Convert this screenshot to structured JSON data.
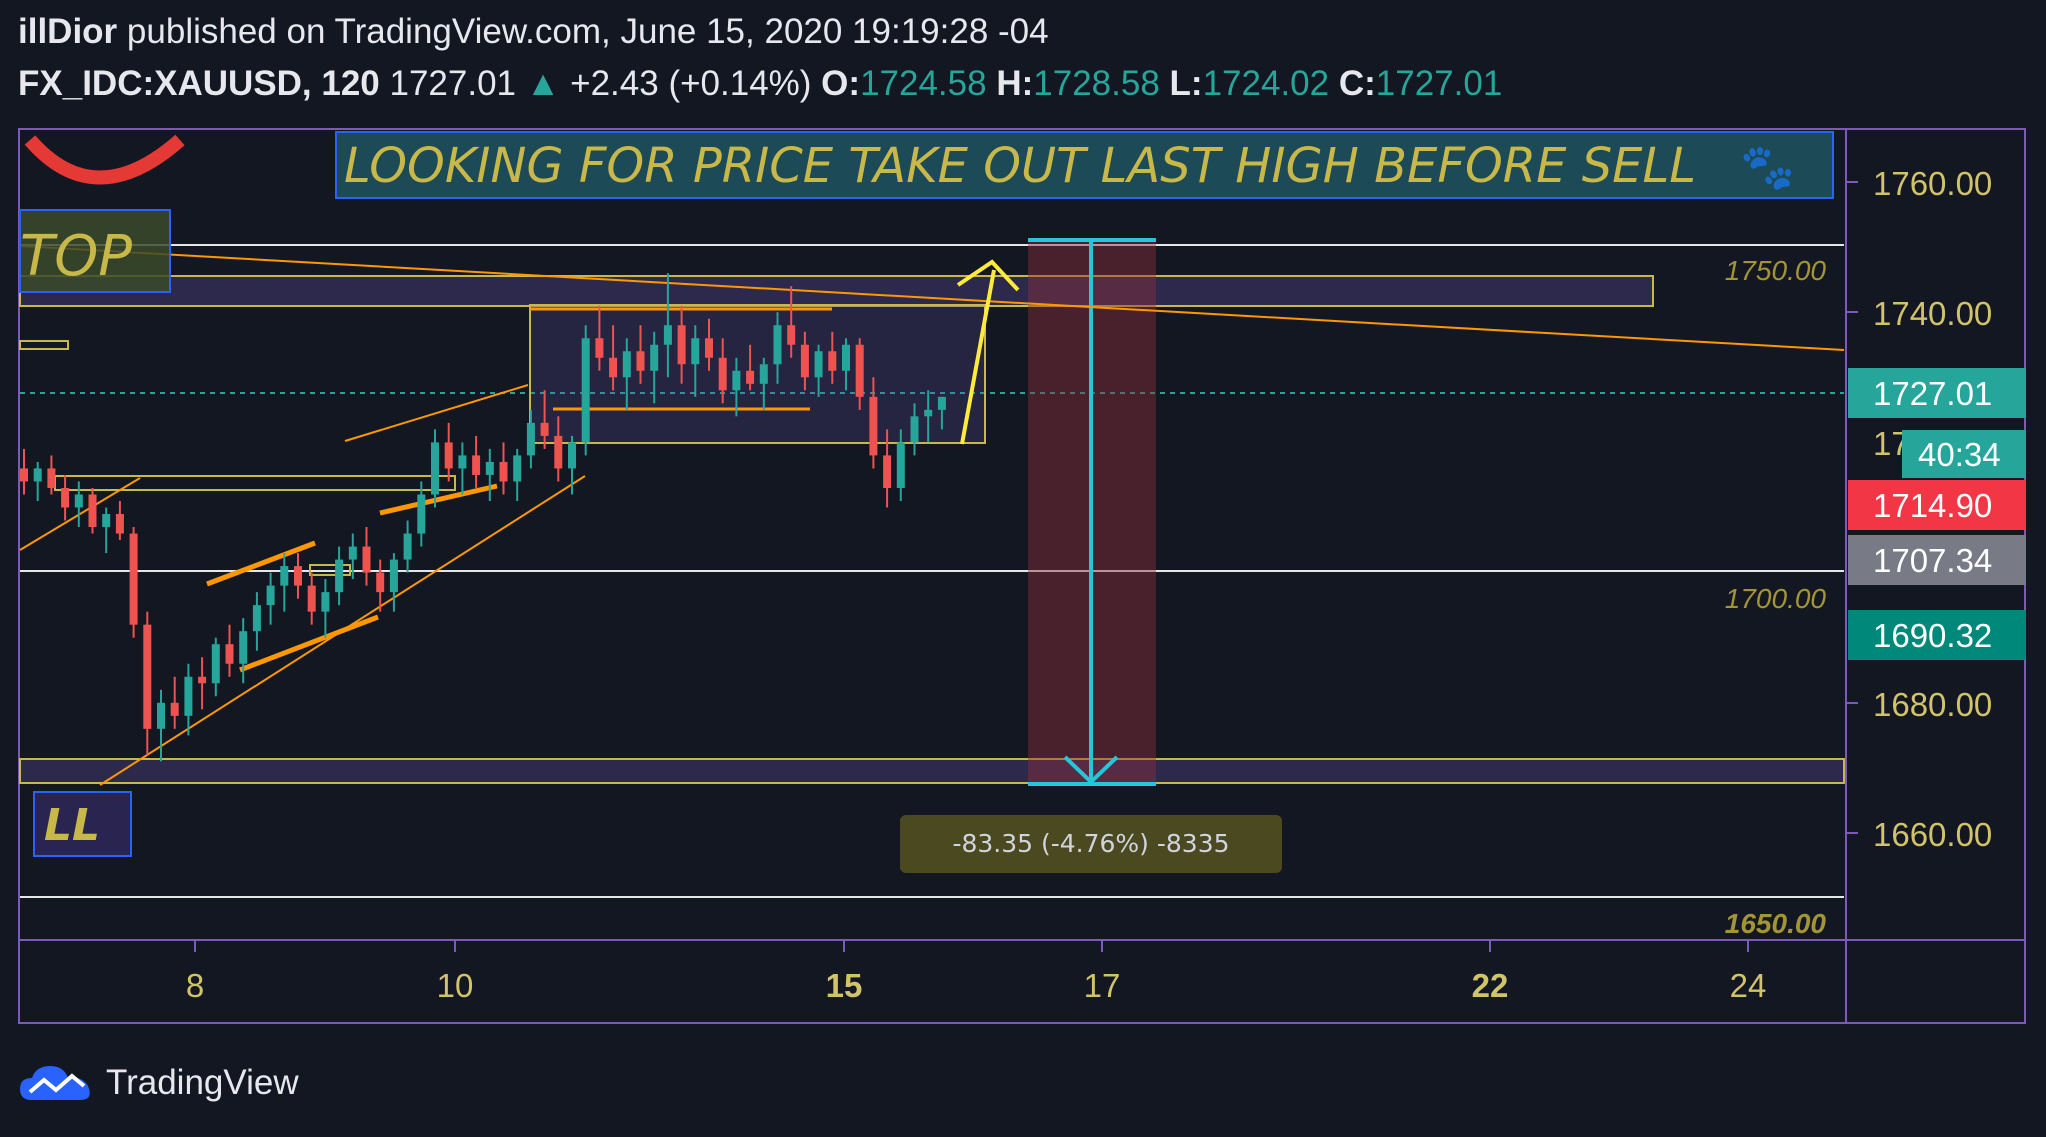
{
  "header": {
    "author": "illDior",
    "published_text": "published on TradingView.com, June 15, 2020 19:19:28 -04",
    "symbol": "FX_IDC:XAUUSD, 120",
    "price": "1727.01",
    "change": "+2.43 (+0.14%)",
    "open_label": "O:",
    "open": "1724.58",
    "high_label": "H:",
    "high": "1728.58",
    "low_label": "L:",
    "low": "1724.02",
    "close_label": "C:",
    "close": "1727.01"
  },
  "brand": {
    "name": "TradingView",
    "icon": "tradingview-cloud-icon"
  },
  "colors": {
    "background": "#131722",
    "up": "#26a69a",
    "down": "#ef5350",
    "accent": "#7b5bb5",
    "annotation": "#c8b84a",
    "trend": "#ff9800"
  },
  "annotations": {
    "banner": "LOOKING FOR PRICE TAKE OUT LAST HIGH BEFORE SELL",
    "banner_emoji": "🐾",
    "top_label": "TOP",
    "ll_label": "LL",
    "measure": "-83.35 (-4.76%) -8335",
    "level_1750": "1750.00",
    "level_1700": "1700.00",
    "level_1650": "1650.00"
  },
  "price_scale": {
    "ticks": [
      "1760.00",
      "1740.00",
      "1680.00",
      "1660.00"
    ],
    "partial_tick": "17",
    "current_price": "1727.01",
    "countdown": "40:34",
    "tag_red": "1714.90",
    "tag_gray": "1707.34",
    "tag_teal": "1690.32"
  },
  "chart_data": {
    "type": "candlestick",
    "symbol": "FX_IDC:XAUUSD",
    "interval": "120",
    "x_ticks": [
      {
        "label": "8",
        "bold": false
      },
      {
        "label": "10",
        "bold": false
      },
      {
        "label": "15",
        "bold": true
      },
      {
        "label": "17",
        "bold": false
      },
      {
        "label": "22",
        "bold": true
      },
      {
        "label": "24",
        "bold": false
      }
    ],
    "y_range": [
      1645,
      1770
    ],
    "ohlc": [
      [
        1716,
        1719,
        1712,
        1714
      ],
      [
        1714,
        1717,
        1711,
        1716
      ],
      [
        1716,
        1718,
        1712,
        1713
      ],
      [
        1713,
        1715,
        1708,
        1710
      ],
      [
        1710,
        1714,
        1707,
        1712
      ],
      [
        1712,
        1713,
        1706,
        1707
      ],
      [
        1707,
        1710,
        1703,
        1709
      ],
      [
        1709,
        1711,
        1705,
        1706
      ],
      [
        1706,
        1707,
        1690,
        1692
      ],
      [
        1692,
        1694,
        1672,
        1676
      ],
      [
        1676,
        1682,
        1671,
        1680
      ],
      [
        1680,
        1684,
        1676,
        1678
      ],
      [
        1678,
        1686,
        1675,
        1684
      ],
      [
        1684,
        1687,
        1679,
        1683
      ],
      [
        1683,
        1690,
        1681,
        1689
      ],
      [
        1689,
        1692,
        1684,
        1686
      ],
      [
        1686,
        1693,
        1683,
        1691
      ],
      [
        1691,
        1697,
        1688,
        1695
      ],
      [
        1695,
        1700,
        1692,
        1698
      ],
      [
        1698,
        1703,
        1694,
        1701
      ],
      [
        1701,
        1703,
        1696,
        1698
      ],
      [
        1698,
        1700,
        1692,
        1694
      ],
      [
        1694,
        1699,
        1690,
        1697
      ],
      [
        1697,
        1704,
        1695,
        1702
      ],
      [
        1702,
        1706,
        1699,
        1704
      ],
      [
        1704,
        1707,
        1698,
        1700
      ],
      [
        1700,
        1702,
        1694,
        1697
      ],
      [
        1697,
        1703,
        1694,
        1702
      ],
      [
        1702,
        1708,
        1700,
        1706
      ],
      [
        1706,
        1714,
        1704,
        1712
      ],
      [
        1712,
        1722,
        1710,
        1720
      ],
      [
        1720,
        1723,
        1714,
        1716
      ],
      [
        1716,
        1720,
        1712,
        1718
      ],
      [
        1718,
        1721,
        1713,
        1715
      ],
      [
        1715,
        1719,
        1711,
        1717
      ],
      [
        1717,
        1720,
        1712,
        1714
      ],
      [
        1714,
        1719,
        1711,
        1718
      ],
      [
        1718,
        1725,
        1716,
        1723
      ],
      [
        1723,
        1728,
        1719,
        1721
      ],
      [
        1721,
        1724,
        1714,
        1716
      ],
      [
        1716,
        1721,
        1712,
        1720
      ],
      [
        1720,
        1738,
        1718,
        1736
      ],
      [
        1736,
        1741,
        1731,
        1733
      ],
      [
        1733,
        1738,
        1728,
        1730
      ],
      [
        1730,
        1736,
        1725,
        1734
      ],
      [
        1734,
        1738,
        1729,
        1731
      ],
      [
        1731,
        1737,
        1726,
        1735
      ],
      [
        1735,
        1746,
        1730,
        1738
      ],
      [
        1738,
        1741,
        1729,
        1732
      ],
      [
        1732,
        1738,
        1727,
        1736
      ],
      [
        1736,
        1739,
        1731,
        1733
      ],
      [
        1733,
        1736,
        1726,
        1728
      ],
      [
        1728,
        1733,
        1724,
        1731
      ],
      [
        1731,
        1735,
        1728,
        1729
      ],
      [
        1729,
        1733,
        1725,
        1732
      ],
      [
        1732,
        1740,
        1729,
        1738
      ],
      [
        1738,
        1744,
        1733,
        1735
      ],
      [
        1735,
        1737,
        1728,
        1730
      ],
      [
        1730,
        1735,
        1727,
        1734
      ],
      [
        1734,
        1737,
        1729,
        1731
      ],
      [
        1731,
        1736,
        1728,
        1735
      ],
      [
        1735,
        1736,
        1725,
        1727
      ],
      [
        1727,
        1730,
        1716,
        1718
      ],
      [
        1718,
        1722,
        1710,
        1713
      ],
      [
        1713,
        1722,
        1711,
        1720
      ],
      [
        1720,
        1726,
        1718,
        1724
      ],
      [
        1724,
        1728,
        1720,
        1725
      ],
      [
        1725,
        1727,
        1722,
        1727
      ]
    ]
  }
}
